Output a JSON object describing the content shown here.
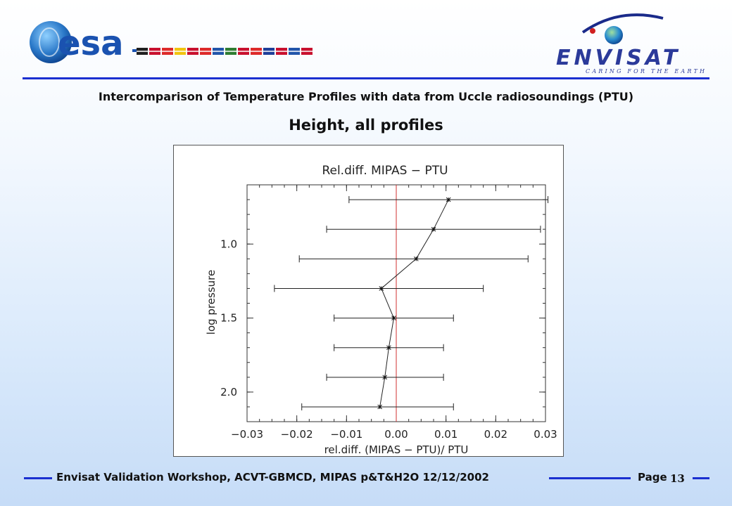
{
  "header": {
    "esa_logo_text": "esa",
    "envisat_logo_text": "ENVISAT",
    "envisat_tagline": "CARING FOR THE EARTH",
    "flag_colors": [
      "#202020",
      "#c8102e",
      "#dd2a2a",
      "#f1c40f",
      "#c8102e",
      "#dd2a2a",
      "#2255aa",
      "#2e7d32",
      "#c8102e",
      "#dd2a2a",
      "#1f3f99",
      "#c8102e",
      "#2255aa",
      "#c8102e"
    ]
  },
  "subtitle": "Intercomparison of Temperature Profiles with data from Uccle radiosoundings (PTU)",
  "slide_title": "Height, all profiles",
  "chart_data": {
    "type": "scatter",
    "title": "Rel.diff. MIPAS − PTU",
    "xlabel": "rel.diff. (MIPAS − PTU)/ PTU",
    "ylabel": "log pressure",
    "xlim": [
      -0.03,
      0.03
    ],
    "ylim": [
      2.2,
      0.6
    ],
    "y_inverted": true,
    "xticks": [
      -0.03,
      -0.02,
      -0.01,
      0.0,
      0.01,
      0.02,
      0.03
    ],
    "xtick_labels": [
      "−0.03",
      "−0.02",
      "−0.01",
      "0.00",
      "0.01",
      "0.02",
      "0.03"
    ],
    "yticks": [
      1.0,
      1.5,
      2.0
    ],
    "ytick_labels": [
      "1.0",
      "1.5",
      "2.0"
    ],
    "reference_line_x": 0.0,
    "reference_line_color": "#d03030",
    "grid": false,
    "series": [
      {
        "points": [
          {
            "y": 0.7,
            "x": 0.0105,
            "xmin": -0.0095,
            "xmax": 0.0305
          },
          {
            "y": 0.9,
            "x": 0.0075,
            "xmin": -0.014,
            "xmax": 0.029
          },
          {
            "y": 1.1,
            "x": 0.004,
            "xmin": -0.0195,
            "xmax": 0.0265
          },
          {
            "y": 1.3,
            "x": -0.003,
            "xmin": -0.0245,
            "xmax": 0.0175
          },
          {
            "y": 1.5,
            "x": -0.0005,
            "xmin": -0.0125,
            "xmax": 0.0115
          },
          {
            "y": 1.7,
            "x": -0.0015,
            "xmin": -0.0125,
            "xmax": 0.0095
          },
          {
            "y": 1.9,
            "x": -0.0023,
            "xmin": -0.014,
            "xmax": 0.0095
          },
          {
            "y": 2.1,
            "x": -0.0033,
            "xmin": -0.019,
            "xmax": 0.0115
          }
        ]
      }
    ]
  },
  "footer": {
    "text": "Envisat Validation Workshop, ACVT-GBMCD,  MIPAS p&T&H2O 12/12/2002",
    "page_label": "Page",
    "page_number": "13"
  }
}
